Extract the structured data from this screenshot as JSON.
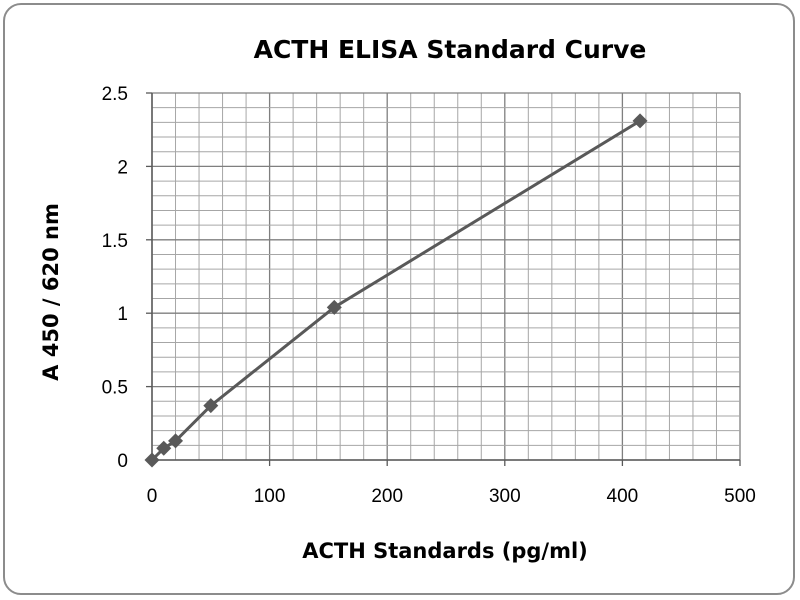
{
  "chart_data": {
    "type": "scatter",
    "title": "ACTH ELISA Standard Curve",
    "xlabel": "ACTH Standards (pg/ml)",
    "ylabel": "A 450 / 620 nm",
    "xlim": [
      0,
      500
    ],
    "ylim": [
      0,
      2.5
    ],
    "x_ticks": [
      "0",
      "100",
      "200",
      "300",
      "400",
      "500"
    ],
    "y_ticks": [
      "0",
      "0.5",
      "1",
      "1.5",
      "2",
      "2.5"
    ],
    "grid": true,
    "legend": "none",
    "series": [
      {
        "x": [
          0,
          10,
          20,
          50,
          155,
          415
        ],
        "y": [
          0.0,
          0.08,
          0.13,
          0.37,
          1.04,
          2.31
        ],
        "color": "#595959",
        "marker": "diamond",
        "line": "straight"
      }
    ]
  }
}
